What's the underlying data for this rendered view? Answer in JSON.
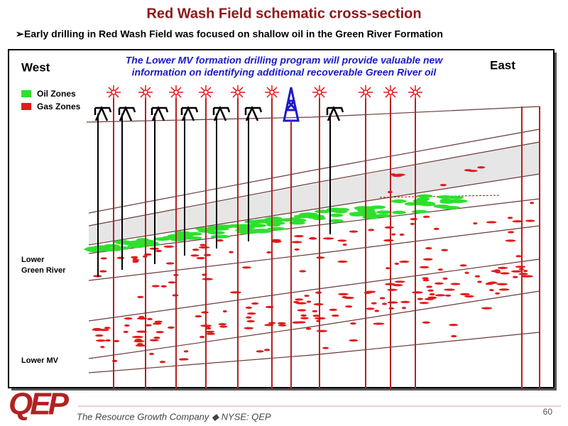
{
  "header": {
    "title": "Red Wash Field schematic cross-section",
    "bullet": "Early drilling in Red Wash Field was focused on shallow oil in the Green River Formation"
  },
  "diagram": {
    "callout": [
      "The Lower MV formation drilling program will provide valuable new",
      "information on identifying additional recoverable Green River oil"
    ],
    "west": "West",
    "east": "East",
    "legend": [
      "Oil Zones",
      "Gas Zones"
    ],
    "labels": {
      "lower_green_river": [
        "Lower",
        "Green River"
      ],
      "lower_mv": "Lower MV"
    }
  },
  "footer": {
    "logo": "QEP",
    "tagline": "The Resource Growth Company ◆ NYSE: QEP",
    "page": "60"
  }
}
